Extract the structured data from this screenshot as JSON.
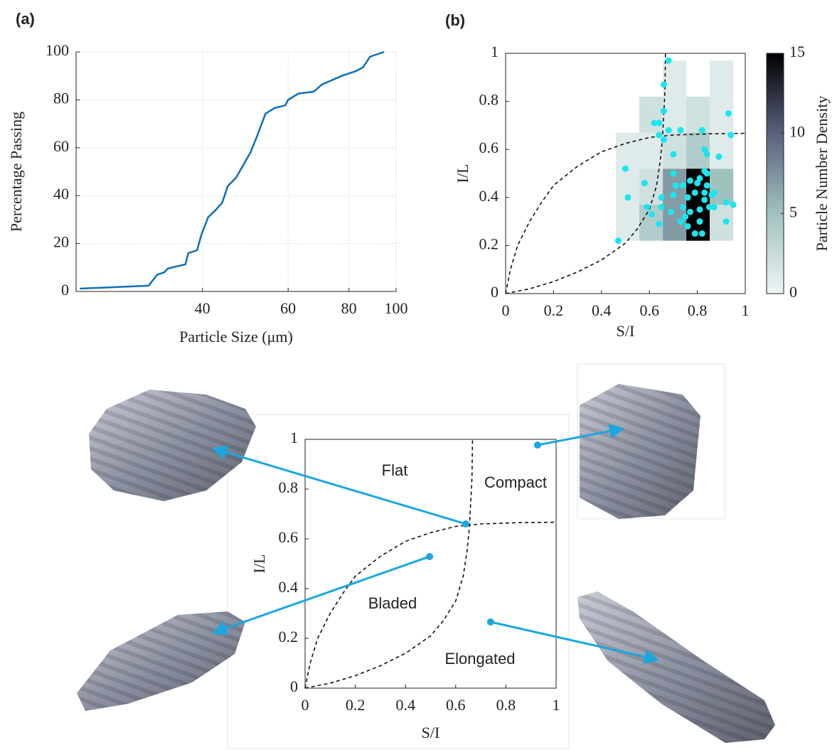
{
  "chart_data": [
    {
      "type": "line",
      "panel_label": "(a)",
      "xlabel": "Particle Size (μm)",
      "ylabel": "Percentage Passing",
      "x": [
        22.4,
        31.0,
        32.3,
        33.4,
        33.9,
        35.3,
        36.9,
        37.4,
        39.0,
        39.8,
        41.1,
        42.5,
        43.9,
        45.1,
        46.9,
        50.2,
        51.9,
        53.9,
        56.3,
        59.2,
        60,
        63,
        67.7,
        70.4,
        77.4,
        82.7,
        85.5,
        88.4,
        94.5
      ],
      "values": [
        1.2,
        2.4,
        7,
        8,
        9.5,
        10.4,
        11.3,
        16,
        17.2,
        23.7,
        31,
        33.8,
        37,
        44,
        47.5,
        58,
        65.3,
        74.2,
        76.6,
        77.7,
        80,
        82.6,
        83.4,
        86.4,
        90,
        92,
        93.5,
        98,
        100
      ],
      "color": "#0e6fb8",
      "xscale": "log",
      "xlim": [
        22,
        100
      ],
      "xticks": [
        40,
        60,
        80,
        100
      ],
      "ylim": [
        0,
        100
      ],
      "yticks": [
        0,
        20,
        40,
        60,
        80,
        100
      ],
      "grid": true
    },
    {
      "type": "heatmap",
      "panel_label": "(b)",
      "xlabel": "S/I",
      "ylabel": "I/L",
      "xbins": [
        0.46,
        0.558,
        0.656,
        0.754,
        0.852,
        0.95
      ],
      "ybins": [
        0.22,
        0.37,
        0.52,
        0.67,
        0.82,
        0.97
      ],
      "z": [
        [
          1,
          4,
          7,
          15,
          2
        ],
        [
          1,
          2,
          7,
          15,
          5
        ],
        [
          1,
          1,
          2,
          4,
          1
        ],
        [
          null,
          2,
          1,
          2,
          1
        ],
        [
          null,
          null,
          1,
          null,
          1
        ]
      ],
      "colormap": [
        "#eef5f5",
        "#a0c2bf",
        "#5a607f",
        "#000000"
      ],
      "scatter": {
        "color": "#19e6f0",
        "x": [
          0.68,
          0.66,
          0.66,
          0.62,
          0.64,
          0.64,
          0.68,
          0.73,
          0.82,
          0.66,
          0.7,
          0.83,
          0.84,
          0.5,
          0.58,
          0.7,
          0.71,
          0.83,
          0.81,
          0.8,
          0.84,
          0.77,
          0.74,
          0.51,
          0.65,
          0.7,
          0.76,
          0.79,
          0.83,
          0.86,
          0.95,
          0.92,
          0.87,
          0.65,
          0.69,
          0.74,
          0.77,
          0.81,
          0.85,
          0.87,
          0.92,
          0.81,
          0.75,
          0.73,
          0.76,
          0.79,
          0.82,
          0.64,
          0.61,
          0.59,
          0.47,
          0.93,
          0.94,
          0.89,
          0.84,
          0.83
        ],
        "y": [
          0.97,
          0.87,
          0.76,
          0.71,
          0.71,
          0.66,
          0.68,
          0.68,
          0.68,
          0.64,
          0.58,
          0.6,
          0.58,
          0.52,
          0.46,
          0.5,
          0.45,
          0.51,
          0.48,
          0.46,
          0.5,
          0.47,
          0.45,
          0.4,
          0.4,
          0.41,
          0.4,
          0.42,
          0.42,
          0.41,
          0.37,
          0.38,
          0.42,
          0.36,
          0.34,
          0.36,
          0.34,
          0.35,
          0.36,
          0.36,
          0.3,
          0.3,
          0.32,
          0.3,
          0.28,
          0.25,
          0.25,
          0.29,
          0.33,
          0.36,
          0.22,
          0.75,
          0.66,
          0.57,
          0.45,
          0.39
        ]
      },
      "xlim": [
        0,
        1
      ],
      "xticks": [
        0,
        0.2,
        0.4,
        0.6,
        0.8,
        1
      ],
      "ylim": [
        0,
        1
      ],
      "yticks": [
        0,
        0.2,
        0.4,
        0.6,
        0.8,
        1
      ],
      "colorbar": {
        "label": "Particle Number Density",
        "lim": [
          0,
          15
        ],
        "ticks": [
          0,
          5,
          10,
          15
        ]
      }
    },
    {
      "type": "scatter",
      "xlabel": "S/I",
      "ylabel": "I/L",
      "x": [
        0.926,
        0.64,
        0.496,
        0.739
      ],
      "y": [
        0.977,
        0.66,
        0.529,
        0.266
      ],
      "color": "#1aa7e0",
      "regions": [
        "Flat",
        "Compact",
        "Bladed",
        "Elongated"
      ],
      "xlim": [
        0,
        1
      ],
      "xticks": [
        0,
        0.2,
        0.4,
        0.6,
        0.8,
        1
      ],
      "ylim": [
        0,
        1
      ],
      "yticks": [
        0,
        0.2,
        0.4,
        0.6,
        0.8,
        1
      ]
    }
  ]
}
